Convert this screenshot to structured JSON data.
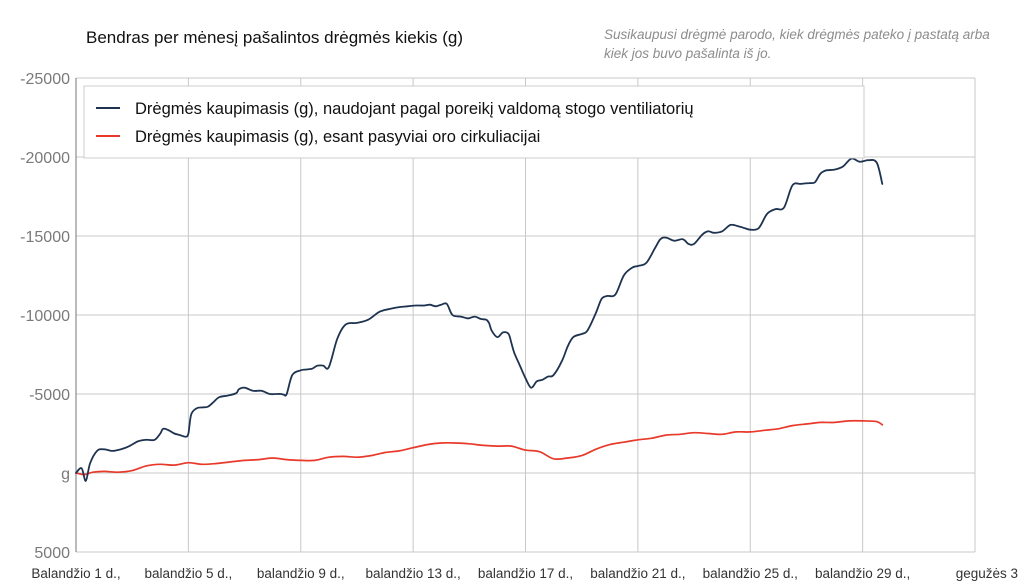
{
  "chart_data": {
    "type": "line",
    "title": "Bendras per mėnesį pašalintos drėgmės kiekis (g)",
    "note": "Susikaupusi drėgmė parodo, kiek drėgmės pateko į pastatą arba kiek jos buvo pašalinta iš jo.",
    "ylabel": "",
    "xlabel": "",
    "y_axis_inverted": true,
    "ylim": [
      5000,
      -25000
    ],
    "y_ticks": [
      -25000,
      -20000,
      -15000,
      -10000,
      -5000,
      0,
      5000
    ],
    "y_tick_labels": [
      "-25000",
      "-20000",
      "-15000",
      "-10000",
      "-5000",
      "g",
      "5000"
    ],
    "x_range_days": [
      1,
      33
    ],
    "x_ticks": [
      1,
      5,
      9,
      13,
      17,
      21,
      25,
      29,
      33
    ],
    "x_tick_labels": [
      "Balandžio 1 d.,",
      "balandžio 5 d.,",
      "balandžio 9 d.,",
      "balandžio 13 d.,",
      "balandžio 17 d.,",
      "balandžio 21 d.,",
      "balandžio 25 d.,",
      "balandžio 29 d.,",
      "gegužės 3"
    ],
    "grid": true,
    "legend_position": "top-left",
    "colors": {
      "ventilator": "#1e3350",
      "passive": "#e8392a",
      "grid": "#c8c8c8",
      "axis": "#777777"
    },
    "series": [
      {
        "name": "Drėgmės kaupimasis (g), naudojant pagal poreikį valdomą stogo ventiliatorių",
        "color": "#1e3350",
        "x": [
          1.0,
          1.2,
          1.35,
          1.5,
          1.75,
          2.0,
          2.3,
          2.6,
          2.9,
          3.2,
          3.5,
          3.8,
          4.0,
          4.1,
          4.3,
          4.5,
          4.7,
          4.9,
          5.0,
          5.1,
          5.3,
          5.5,
          5.7,
          5.9,
          6.1,
          6.4,
          6.7,
          6.8,
          7.0,
          7.3,
          7.6,
          7.9,
          8.1,
          8.3,
          8.4,
          8.5,
          8.7,
          9.0,
          9.2,
          9.4,
          9.5,
          9.6,
          9.8,
          10.0,
          10.3,
          10.6,
          11.0,
          11.4,
          11.8,
          12.2,
          12.5,
          12.8,
          13.1,
          13.4,
          13.6,
          13.8,
          14.0,
          14.2,
          14.4,
          14.7,
          14.9,
          15.0,
          15.2,
          15.4,
          15.6,
          15.7,
          15.8,
          16.0,
          16.2,
          16.4,
          16.5,
          16.6,
          16.8,
          17.0,
          17.2,
          17.4,
          17.6,
          17.8,
          18.0,
          18.3,
          18.5,
          18.7,
          19.0,
          19.2,
          19.5,
          19.7,
          19.9,
          20.2,
          20.5,
          20.8,
          21.0,
          21.3,
          21.6,
          21.8,
          22.0,
          22.3,
          22.6,
          22.8,
          23.0,
          23.3,
          23.5,
          23.7,
          24.0,
          24.3,
          24.6,
          24.8,
          25.0,
          25.3,
          25.6,
          25.9,
          26.2,
          26.5,
          26.8,
          27.1,
          27.3,
          27.5,
          27.7,
          28.0,
          28.3,
          28.6,
          28.9,
          29.2,
          29.5,
          29.7
        ],
        "y": [
          0,
          -300,
          500,
          -600,
          -1400,
          -1500,
          -1400,
          -1500,
          -1700,
          -2000,
          -2100,
          -2100,
          -2500,
          -2800,
          -2700,
          -2500,
          -2400,
          -2300,
          -2500,
          -3700,
          -4100,
          -4150,
          -4200,
          -4500,
          -4800,
          -4900,
          -5050,
          -5300,
          -5400,
          -5200,
          -5200,
          -5000,
          -5000,
          -5000,
          -4950,
          -5000,
          -6200,
          -6500,
          -6550,
          -6600,
          -6700,
          -6800,
          -6800,
          -6700,
          -8500,
          -9400,
          -9500,
          -9700,
          -10200,
          -10400,
          -10500,
          -10550,
          -10600,
          -10600,
          -10650,
          -10550,
          -10650,
          -10700,
          -10000,
          -9900,
          -9800,
          -9800,
          -9900,
          -9750,
          -9700,
          -9500,
          -9000,
          -8600,
          -8900,
          -8800,
          -8200,
          -7600,
          -6800,
          -6000,
          -5400,
          -5800,
          -5900,
          -6100,
          -6200,
          -7100,
          -8000,
          -8600,
          -8800,
          -9000,
          -10100,
          -11000,
          -11200,
          -11300,
          -12500,
          -13000,
          -13100,
          -13300,
          -14200,
          -14800,
          -14900,
          -14700,
          -14800,
          -14500,
          -14500,
          -15100,
          -15300,
          -15200,
          -15300,
          -15700,
          -15600,
          -15500,
          -15400,
          -15500,
          -16400,
          -16700,
          -16800,
          -18200,
          -18300,
          -18350,
          -18400,
          -18950,
          -19150,
          -19200,
          -19400,
          -19900,
          -19700,
          -19800,
          -19650,
          -18300
        ]
      },
      {
        "name": "Drėgmės kaupimasis (g), esant pasyviai oro cirkuliacijai",
        "color": "#e8392a",
        "x": [
          1.0,
          1.3,
          1.6,
          2.0,
          2.5,
          3.0,
          3.5,
          4.0,
          4.5,
          5.0,
          5.5,
          6.0,
          6.5,
          7.0,
          7.5,
          8.0,
          8.5,
          9.0,
          9.5,
          10.0,
          10.5,
          11.0,
          11.5,
          12.0,
          12.5,
          13.0,
          13.5,
          14.0,
          14.5,
          15.0,
          15.5,
          16.0,
          16.5,
          17.0,
          17.5,
          18.0,
          18.5,
          19.0,
          19.5,
          20.0,
          20.5,
          21.0,
          21.5,
          22.0,
          22.5,
          23.0,
          23.5,
          24.0,
          24.5,
          25.0,
          25.5,
          26.0,
          26.5,
          27.0,
          27.5,
          28.0,
          28.5,
          29.0,
          29.5,
          29.7
        ],
        "y": [
          0,
          100,
          -50,
          -100,
          -50,
          -150,
          -450,
          -550,
          -500,
          -650,
          -550,
          -600,
          -700,
          -800,
          -850,
          -950,
          -850,
          -800,
          -800,
          -1000,
          -1050,
          -1000,
          -1100,
          -1300,
          -1400,
          -1600,
          -1800,
          -1900,
          -1900,
          -1850,
          -1750,
          -1700,
          -1700,
          -1450,
          -1350,
          -900,
          -950,
          -1100,
          -1500,
          -1800,
          -1950,
          -2100,
          -2200,
          -2400,
          -2450,
          -2550,
          -2500,
          -2450,
          -2600,
          -2600,
          -2700,
          -2800,
          -3000,
          -3100,
          -3200,
          -3200,
          -3300,
          -3300,
          -3250,
          -3050
        ]
      }
    ]
  }
}
